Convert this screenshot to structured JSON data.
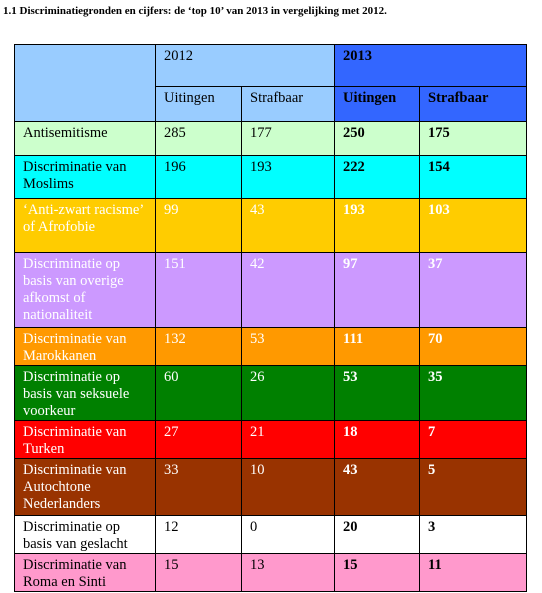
{
  "title": "1.1 Discriminatiegronden en cijfers: de ‘top 10’ van 2013 in vergelijking met 2012.",
  "table": {
    "header": {
      "corner": "",
      "year_2012": "2012",
      "year_2013": "2013",
      "sub_2012": [
        "Uitingen",
        "Strafbaar"
      ],
      "sub_2013": [
        "Uitingen",
        "Strafbaar"
      ]
    },
    "colors": {
      "header_2012": "#99ccff",
      "header_2013": "#3366ff"
    },
    "rows": [
      {
        "label": "Antisemitisme",
        "u2012": "285",
        "s2012": "177",
        "u2013": "250",
        "s2013": "175",
        "bg": "#ccffcc",
        "fg": "#000000"
      },
      {
        "label": "Discriminatie van Moslims",
        "u2012": "196",
        "s2012": "193",
        "u2013": "222",
        "s2013": "154",
        "bg": "#00ffff",
        "fg": "#000000"
      },
      {
        "label": "‘Anti-zwart racisme’ of Afrofobie",
        "u2012": "99",
        "s2012": "43",
        "u2013": "193",
        "s2013": "103",
        "bg": "#ffcc00",
        "fg": "#ffffff"
      },
      {
        "label": "Discriminatie op basis van overige afkomst of nationaliteit",
        "u2012": "151",
        "s2012": "42",
        "u2013": "97",
        "s2013": "37",
        "bg": "#cc99ff",
        "fg": "#ffffff"
      },
      {
        "label": "Discriminatie van Marokkanen",
        "u2012": "132",
        "s2012": "53",
        "u2013": "111",
        "s2013": "70",
        "bg": "#ff9900",
        "fg": "#ffffff"
      },
      {
        "label": "Discriminatie op basis van seksuele voorkeur",
        "u2012": "60",
        "s2012": "26",
        "u2013": "53",
        "s2013": "35",
        "bg": "#008000",
        "fg": "#ffffff"
      },
      {
        "label": "Discriminatie van Turken",
        "u2012": "27",
        "s2012": "21",
        "u2013": "18",
        "s2013": "7",
        "bg": "#ff0000",
        "fg": "#ffffff"
      },
      {
        "label": "Discriminatie van Autochtone Nederlanders",
        "u2012": "33",
        "s2012": "10",
        "u2013": "43",
        "s2013": "5",
        "bg": "#993300",
        "fg": "#ffffff"
      },
      {
        "label": "Discriminatie op basis van geslacht",
        "u2012": "12",
        "s2012": "0",
        "u2013": "20",
        "s2013": "3",
        "bg": "#ffffff",
        "fg": "#000000"
      },
      {
        "label": "Discriminatie van Roma en Sinti",
        "u2012": "15",
        "s2012": "13",
        "u2013": "15",
        "s2013": "11",
        "bg": "#ff99cc",
        "fg": "#000000"
      }
    ]
  }
}
